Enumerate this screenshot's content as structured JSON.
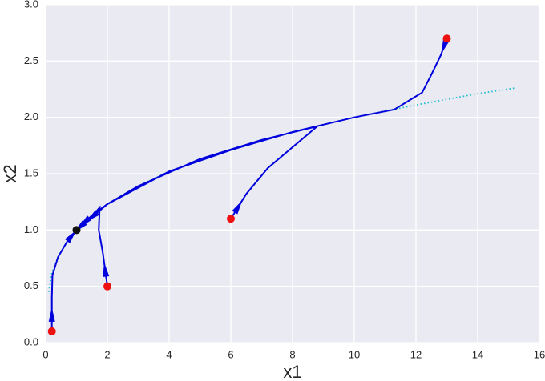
{
  "chart_data": {
    "type": "phase",
    "x_label": "x1",
    "y_label": "x2",
    "xlim": [
      0,
      16
    ],
    "ylim": [
      0,
      3
    ],
    "xticks": [
      0,
      2,
      4,
      6,
      8,
      10,
      12,
      14,
      16
    ],
    "yticks": [
      {
        "value": 0,
        "label": "0.0"
      },
      {
        "value": 0.5,
        "label": "0.5"
      },
      {
        "value": 1,
        "label": "1.0"
      },
      {
        "value": 1.5,
        "label": "1.5"
      },
      {
        "value": 2,
        "label": "2.0"
      },
      {
        "value": 2.5,
        "label": "2.5"
      },
      {
        "value": 3,
        "label": "3.0"
      }
    ],
    "grid": true,
    "curve": {
      "color": "#17becf",
      "x": [
        0.1,
        0.2,
        0.4,
        0.7,
        1,
        2,
        3,
        4,
        6,
        8,
        10,
        12,
        14,
        15.2
      ],
      "y": [
        0.45,
        0.62,
        0.76,
        0.9,
        1.0,
        1.23,
        1.39,
        1.52,
        1.71,
        1.87,
        2.0,
        2.11,
        2.21,
        2.26
      ]
    },
    "series": [
      {
        "color": "#0000dd",
        "x": [
          0.2,
          0.2,
          0.22,
          0.4,
          0.7,
          1.0
        ],
        "y": [
          0.1,
          0.4,
          0.6,
          0.76,
          0.9,
          1.0
        ]
      },
      {
        "color": "#0000dd",
        "x": [
          2.0,
          1.85,
          1.72,
          1.75,
          1.5,
          1.2,
          1.0
        ],
        "y": [
          0.5,
          0.8,
          1.0,
          1.2,
          1.12,
          1.05,
          1.0
        ]
      },
      {
        "color": "#0000dd",
        "x": [
          6,
          6.5,
          7.2,
          8.8,
          7,
          5,
          3,
          2,
          1.5,
          1
        ],
        "y": [
          1.1,
          1.32,
          1.55,
          1.92,
          1.8,
          1.63,
          1.39,
          1.23,
          1.13,
          1.0
        ]
      },
      {
        "color": "#0000dd",
        "x": [
          13,
          12.8,
          12.5,
          12.2,
          11.3,
          10,
          8,
          6,
          4,
          2,
          1
        ],
        "y": [
          2.7,
          2.55,
          2.38,
          2.22,
          2.07,
          2.0,
          1.87,
          1.71,
          1.52,
          1.23,
          1.0
        ]
      }
    ],
    "start_points": {
      "color": "#ee1111",
      "x": [
        0.2,
        2,
        6,
        13
      ],
      "y": [
        0.1,
        0.5,
        1.1,
        2.7
      ]
    },
    "equilibrium": {
      "color": "#111111",
      "x": [
        1
      ],
      "y": [
        1
      ]
    }
  }
}
